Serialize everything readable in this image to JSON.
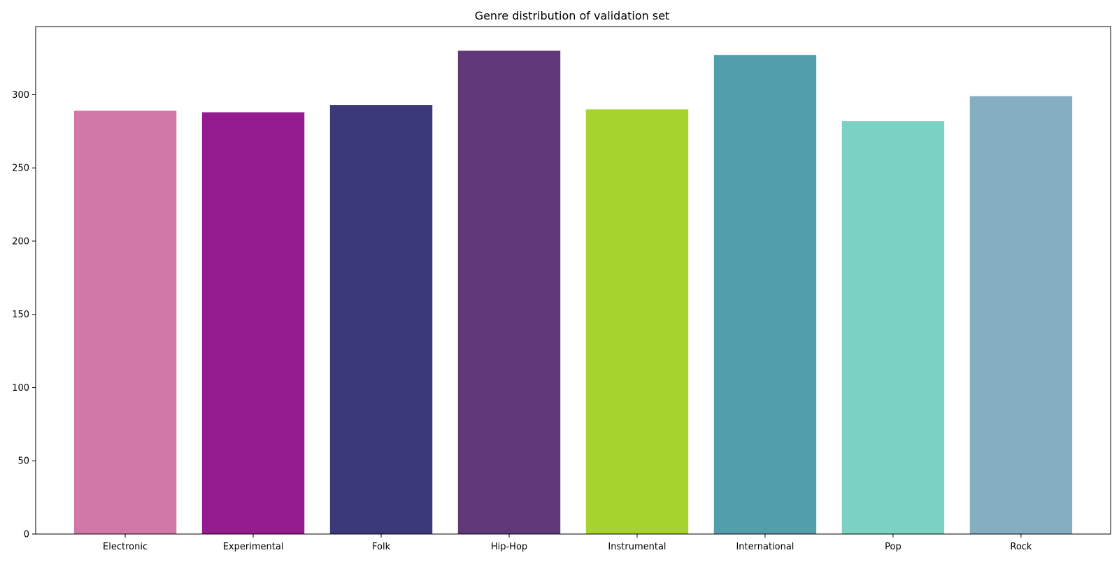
{
  "chart_data": {
    "type": "bar",
    "title": "Genre distribution of validation set",
    "xlabel": "",
    "ylabel": "",
    "categories": [
      "Electronic",
      "Experimental",
      "Folk",
      "Hip-Hop",
      "Instrumental",
      "International",
      "Pop",
      "Rock"
    ],
    "values": [
      289,
      288,
      293,
      330,
      290,
      327,
      282,
      299
    ],
    "colors": [
      "#d278a9",
      "#941c8f",
      "#3b3979",
      "#603878",
      "#a7d32f",
      "#539ead",
      "#7bd1c2",
      "#86aec2"
    ],
    "yticks": [
      0,
      50,
      100,
      150,
      200,
      250,
      300
    ],
    "ylim": [
      0,
      346.5
    ],
    "grid": false,
    "legend": "none"
  }
}
